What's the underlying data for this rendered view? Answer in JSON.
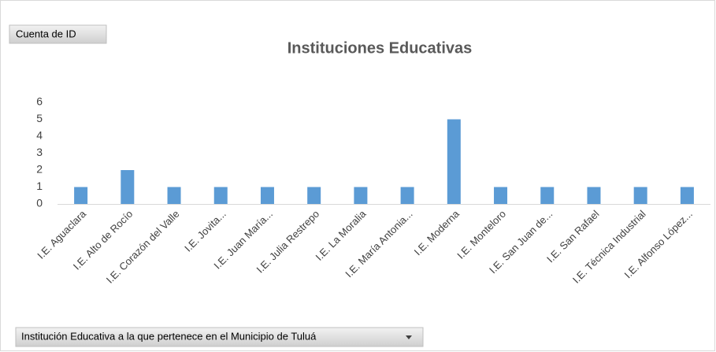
{
  "chart_data": {
    "type": "bar",
    "title": "Instituciones Educativas",
    "value_field_button": "Cuenta de ID",
    "axis_field_button": "Institución Educativa a la que pertenece en el Municipio de Tuluá",
    "categories": [
      "I.E. Aguaclara",
      "I.E. Alto de Rocío",
      "I.E. Corazón del Valle",
      "I.E. Jovita...",
      "I.E. Juan María...",
      "I.E. Julia Restrepo",
      "I.E. La Moralia",
      "I.E. María Antonia...",
      "I.E. Moderna",
      "I.E. Monteloro",
      "I.E. San Juan de...",
      "I.E. San Rafael",
      "I.E. Técnica Industrial",
      "I.E. Alfonso López..."
    ],
    "values": [
      1,
      2,
      1,
      1,
      1,
      1,
      1,
      1,
      5,
      1,
      1,
      1,
      1,
      1
    ],
    "color": "#5b9bd5",
    "ylim": [
      0,
      6
    ],
    "yticks": [
      0,
      1,
      2,
      3,
      4,
      5,
      6
    ],
    "grid": false
  }
}
